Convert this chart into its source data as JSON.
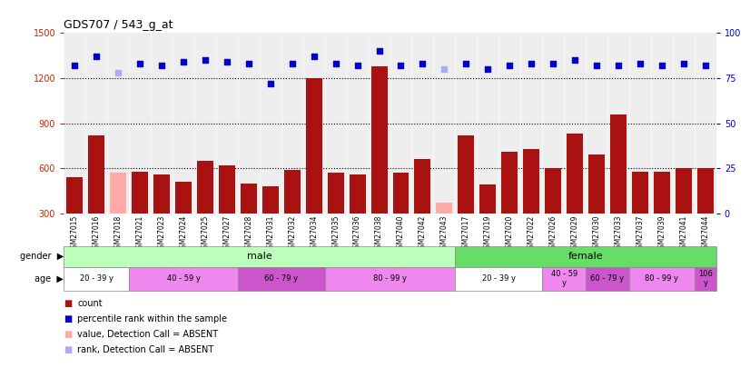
{
  "title": "GDS707 / 543_g_at",
  "samples": [
    "GSM27015",
    "GSM27016",
    "GSM27018",
    "GSM27021",
    "GSM27023",
    "GSM27024",
    "GSM27025",
    "GSM27027",
    "GSM27028",
    "GSM27031",
    "GSM27032",
    "GSM27034",
    "GSM27035",
    "GSM27036",
    "GSM27038",
    "GSM27040",
    "GSM27042",
    "GSM27043",
    "GSM27017",
    "GSM27019",
    "GSM27020",
    "GSM27022",
    "GSM27026",
    "GSM27029",
    "GSM27030",
    "GSM27033",
    "GSM27037",
    "GSM27039",
    "GSM27041",
    "GSM27044"
  ],
  "count_values": [
    540,
    820,
    570,
    580,
    560,
    510,
    650,
    620,
    500,
    480,
    590,
    1200,
    570,
    560,
    1280,
    570,
    660,
    370,
    820,
    490,
    710,
    730,
    600,
    830,
    690,
    960,
    580,
    580,
    600,
    600
  ],
  "count_absent": [
    false,
    false,
    true,
    false,
    false,
    false,
    false,
    false,
    false,
    false,
    false,
    false,
    false,
    false,
    false,
    false,
    false,
    true,
    false,
    false,
    false,
    false,
    false,
    false,
    false,
    false,
    false,
    false,
    false,
    false
  ],
  "percentile_values": [
    82,
    87,
    78,
    83,
    82,
    84,
    85,
    84,
    83,
    72,
    83,
    87,
    83,
    82,
    90,
    82,
    83,
    80,
    83,
    80,
    82,
    83,
    83,
    85,
    82,
    82,
    83,
    82,
    83,
    82
  ],
  "percentile_absent": [
    false,
    false,
    true,
    false,
    false,
    false,
    false,
    false,
    false,
    false,
    false,
    false,
    false,
    false,
    false,
    false,
    false,
    true,
    false,
    false,
    false,
    false,
    false,
    false,
    false,
    false,
    false,
    false,
    false,
    false
  ],
  "ylim_left": [
    300,
    1500
  ],
  "ylim_right": [
    0,
    100
  ],
  "yticks_left": [
    300,
    600,
    900,
    1200,
    1500
  ],
  "yticks_right": [
    0,
    25,
    50,
    75,
    100
  ],
  "bar_color": "#aa1111",
  "bar_absent_color": "#ffaaaa",
  "dot_color": "#0000cc",
  "dot_absent_color": "#aaaaff",
  "gender_groups": [
    {
      "label": "male",
      "start": 0,
      "end": 17,
      "color": "#bbffbb"
    },
    {
      "label": "female",
      "start": 18,
      "end": 29,
      "color": "#66dd66"
    }
  ],
  "age_groups": [
    {
      "label": "20 - 39 y",
      "start": 0,
      "end": 2,
      "color": "#ffffff"
    },
    {
      "label": "40 - 59 y",
      "start": 3,
      "end": 7,
      "color": "#ee88ee"
    },
    {
      "label": "60 - 79 y",
      "start": 8,
      "end": 11,
      "color": "#cc55cc"
    },
    {
      "label": "80 - 99 y",
      "start": 12,
      "end": 17,
      "color": "#ee88ee"
    },
    {
      "label": "20 - 39 y",
      "start": 18,
      "end": 21,
      "color": "#ffffff"
    },
    {
      "label": "40 - 59\ny",
      "start": 22,
      "end": 23,
      "color": "#ee88ee"
    },
    {
      "label": "60 - 79 y",
      "start": 24,
      "end": 25,
      "color": "#cc55cc"
    },
    {
      "label": "80 - 99 y",
      "start": 26,
      "end": 28,
      "color": "#ee88ee"
    },
    {
      "label": "106\ny",
      "start": 29,
      "end": 29,
      "color": "#cc55cc"
    }
  ],
  "legend_items": [
    {
      "label": "count",
      "color": "#aa1111"
    },
    {
      "label": "percentile rank within the sample",
      "color": "#0000cc"
    },
    {
      "label": "value, Detection Call = ABSENT",
      "color": "#ffaaaa"
    },
    {
      "label": "rank, Detection Call = ABSENT",
      "color": "#aaaaff"
    }
  ],
  "fig_width": 8.26,
  "fig_height": 4.05,
  "dpi": 100
}
